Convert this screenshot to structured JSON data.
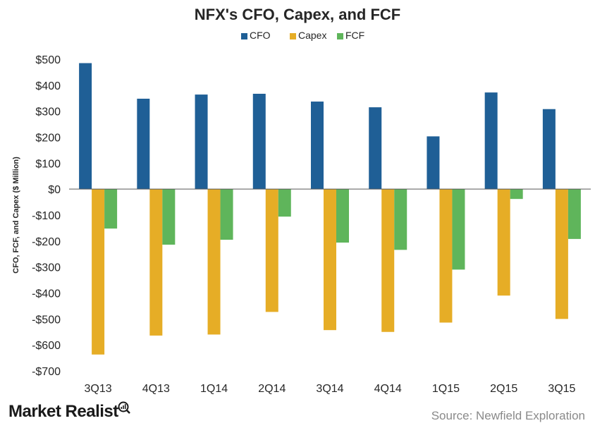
{
  "chart_data": {
    "type": "bar",
    "title": "NFX's CFO, Capex, and FCF",
    "ylabel": "CFO, FCF, and Capex ($ Million)",
    "xlabel": "",
    "categories": [
      "3Q13",
      "4Q13",
      "1Q14",
      "2Q14",
      "3Q14",
      "4Q14",
      "1Q15",
      "2Q15",
      "3Q15"
    ],
    "series": [
      {
        "name": "CFO",
        "color": "#1f5f96",
        "values": [
          485,
          348,
          364,
          367,
          337,
          315,
          203,
          372,
          308
        ]
      },
      {
        "name": "Capex",
        "color": "#e6ad26",
        "values": [
          -637,
          -564,
          -560,
          -473,
          -543,
          -550,
          -514,
          -410,
          -500
        ]
      },
      {
        "name": "FCF",
        "color": "#5fb55b",
        "values": [
          -152,
          -214,
          -195,
          -106,
          -206,
          -234,
          -310,
          -38,
          -192
        ]
      }
    ],
    "ylim": [
      -700,
      500
    ],
    "yticks": [
      500,
      400,
      300,
      200,
      100,
      0,
      -100,
      -200,
      -300,
      -400,
      -500,
      -600,
      -700
    ],
    "ytick_labels": [
      "$500",
      "$400",
      "$300",
      "$200",
      "$100",
      "$0",
      "-$100",
      "-$200",
      "-$300",
      "-$400",
      "-$500",
      "-$600",
      "-$700"
    ],
    "grid": false,
    "legend_position": "top-center"
  },
  "footer": {
    "logo_text": "Market Realist",
    "source": "Source: Newfield Exploration"
  }
}
